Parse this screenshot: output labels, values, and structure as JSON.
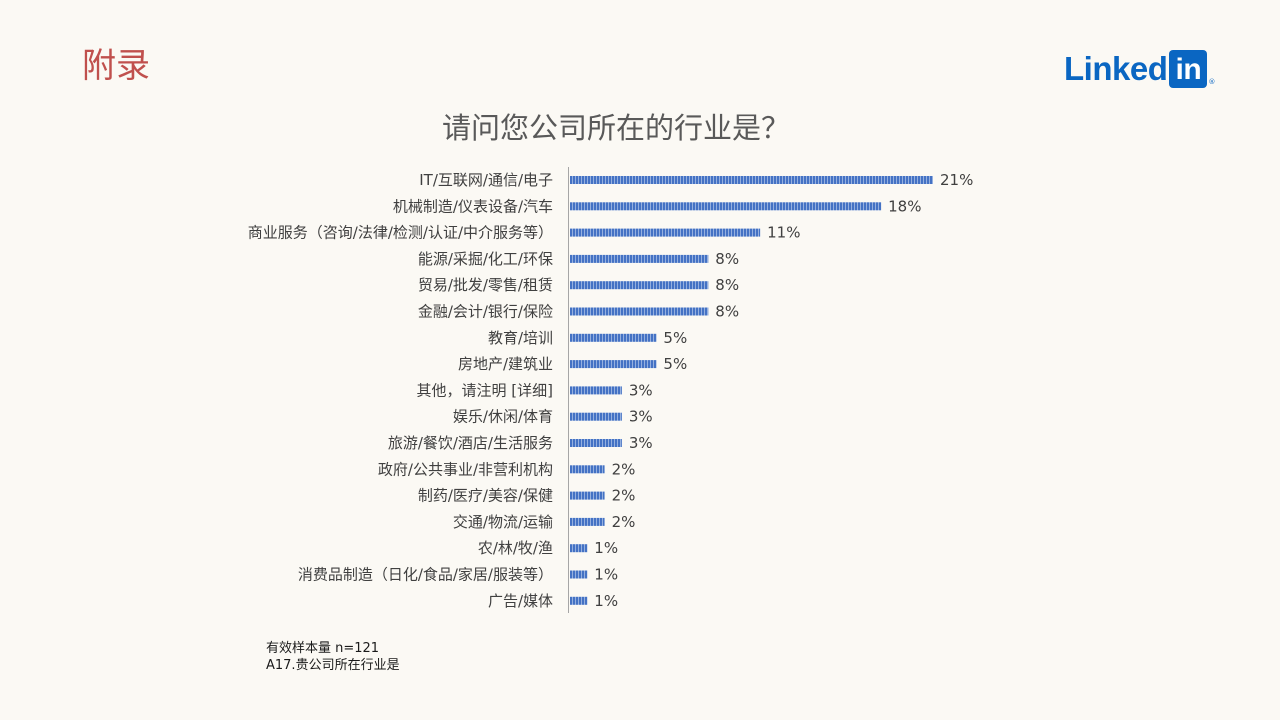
{
  "header": {
    "section_title": "附录",
    "logo_word": "Linked",
    "logo_box": "in",
    "logo_reg": "®"
  },
  "chart_data": {
    "type": "bar",
    "orientation": "horizontal",
    "title": "请问您公司所在的行业是？",
    "xlabel": "",
    "ylabel": "",
    "xlim": [
      0,
      21
    ],
    "grid": false,
    "legend": "none",
    "bar_color": "#4472c4",
    "categories": [
      "IT/互联网/通信/电子",
      "机械制造/仪表设备/汽车",
      "商业服务（咨询/法律/检测/认证/中介服务等）",
      "能源/采掘/化工/环保",
      "贸易/批发/零售/租赁",
      "金融/会计/银行/保险",
      "教育/培训",
      "房地产/建筑业",
      "其他，请注明 [详细]",
      "娱乐/休闲/体育",
      "旅游/餐饮/酒店/生活服务",
      "政府/公共事业/非营利机构",
      "制药/医疗/美容/保健",
      "交通/物流/运输",
      "农/林/牧/渔",
      "消费品制造（日化/食品/家居/服装等）",
      "广告/媒体"
    ],
    "values": [
      21,
      18,
      11,
      8,
      8,
      8,
      5,
      5,
      3,
      3,
      3,
      2,
      2,
      2,
      1,
      1,
      1
    ],
    "value_labels": [
      "21%",
      "18%",
      "11%",
      "8%",
      "8%",
      "8%",
      "5%",
      "5%",
      "3%",
      "3%",
      "3%",
      "2%",
      "2%",
      "2%",
      "1%",
      "1%",
      "1%"
    ]
  },
  "footnotes": {
    "sample": "有效样本量 n=121",
    "question": "A17.贵公司所在行业是"
  }
}
